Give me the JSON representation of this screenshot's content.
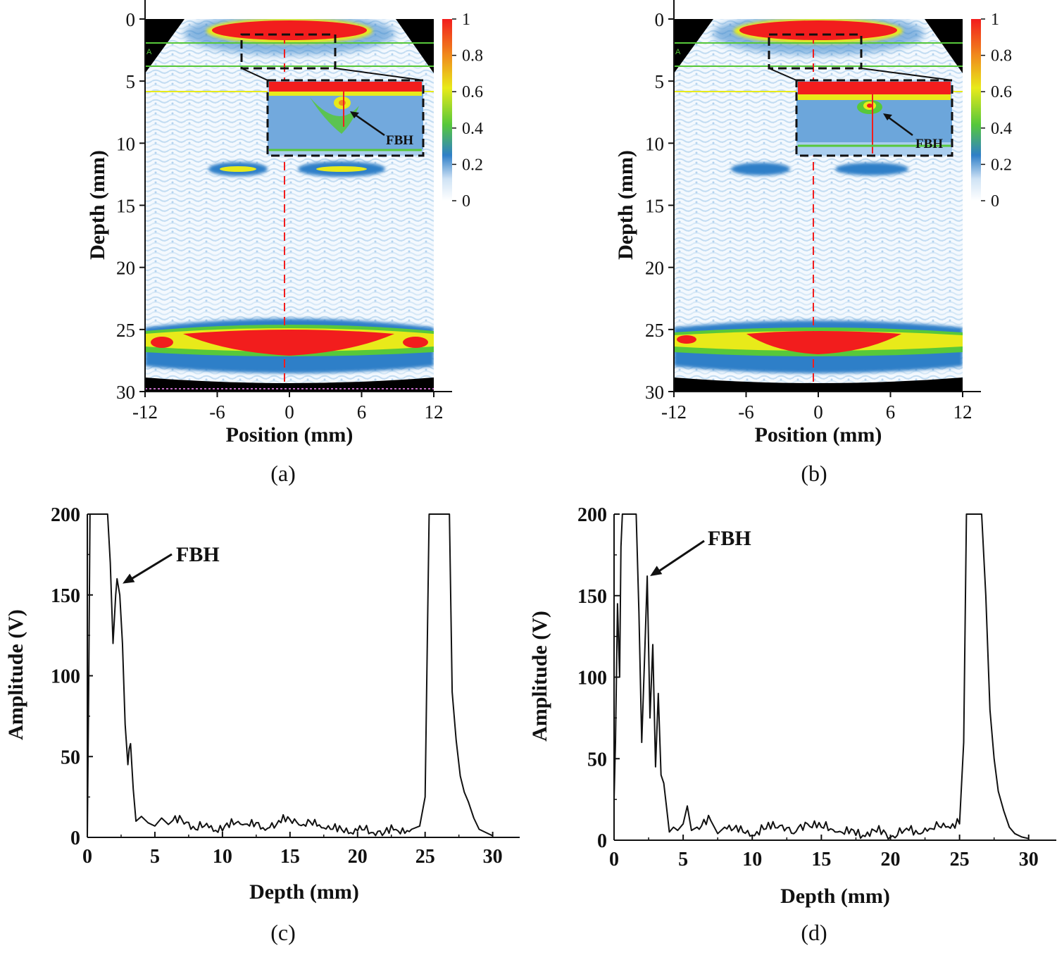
{
  "figure": {
    "colors": {
      "red": "#f21d1d",
      "yellow": "#e8ea1a",
      "green": "#57c83a",
      "blue": "#2f7fc8",
      "light_blue": "#a9cdee",
      "background": "#ffffff",
      "line": "#111111"
    }
  },
  "chart_data": [
    {
      "id": "a",
      "type": "heatmap",
      "caption": "(a)",
      "xlabel": "Position (mm)",
      "ylabel": "Depth (mm)",
      "xlim": [
        -12,
        12
      ],
      "ylim": [
        0,
        30
      ],
      "x_ticks": [
        "-12",
        "-6",
        "0",
        "6",
        "12"
      ],
      "y_ticks": [
        "0",
        "5",
        "10",
        "15",
        "20",
        "25",
        "30"
      ],
      "colorbar": {
        "range": [
          0,
          1
        ],
        "ticks": [
          "1",
          "0.8",
          "0.6",
          "0.4",
          "0.2",
          "0"
        ]
      },
      "marker_label": "A",
      "annotation": "FBH",
      "features": {
        "front_echo_depth": 0.8,
        "backwall_depth": 26.0,
        "side_echo_depth": 12.0,
        "fbh_position": 4.8,
        "fbh_depth": 2.5
      }
    },
    {
      "id": "b",
      "type": "heatmap",
      "caption": "(b)",
      "xlabel": "Position (mm)",
      "ylabel": "Depth (mm)",
      "xlim": [
        -12,
        12
      ],
      "ylim": [
        0,
        30
      ],
      "x_ticks": [
        "-12",
        "-6",
        "0",
        "6",
        "12"
      ],
      "y_ticks": [
        "0",
        "5",
        "10",
        "15",
        "20",
        "25",
        "30"
      ],
      "colorbar": {
        "range": [
          0,
          1
        ],
        "ticks": [
          "1",
          "0.8",
          "0.6",
          "0.4",
          "0.2",
          "0"
        ]
      },
      "marker_label": "A",
      "annotation": "FBH",
      "features": {
        "front_echo_depth": 0.8,
        "backwall_depth": 25.8,
        "side_echo_depth": 12.0,
        "fbh_position": 4.8,
        "fbh_depth": 2.5
      }
    },
    {
      "id": "c",
      "type": "line",
      "caption": "(c)",
      "xlabel": "Depth (mm)",
      "ylabel": "Amplitude (V)",
      "xlim": [
        0,
        32
      ],
      "ylim": [
        0,
        200
      ],
      "x_ticks": [
        "0",
        "5",
        "10",
        "15",
        "20",
        "25",
        "30"
      ],
      "y_ticks": [
        "0",
        "50",
        "100",
        "150",
        "200"
      ],
      "annotation": {
        "text": "FBH",
        "x": 2.4,
        "y": 157
      },
      "x": [
        0,
        0.1,
        0.2,
        0.3,
        1.5,
        1.7,
        1.9,
        2.1,
        2.2,
        2.4,
        2.6,
        2.8,
        3.0,
        3.1,
        3.2,
        3.4,
        3.6,
        4.0,
        4.5,
        5.0,
        5.5,
        6.0,
        7.0,
        8.0,
        9.0,
        10.0,
        11.0,
        12.0,
        13.0,
        14.0,
        15.0,
        16.0,
        17.0,
        18.0,
        19.0,
        20.0,
        21.0,
        22.0,
        23.0,
        24.0,
        24.6,
        25.0,
        25.3,
        25.5,
        26.8,
        27.0,
        27.3,
        27.6,
        27.9,
        28.2,
        28.6,
        29.0,
        29.5,
        30.0
      ],
      "y": [
        0,
        90,
        200,
        200,
        200,
        170,
        120,
        150,
        160,
        150,
        120,
        70,
        45,
        55,
        58,
        30,
        10,
        13,
        9,
        7,
        12,
        8,
        11,
        5,
        6,
        4,
        9,
        7,
        6,
        8,
        11,
        8,
        7,
        5,
        3,
        4,
        3,
        3,
        4,
        5,
        7,
        25,
        200,
        200,
        200,
        90,
        60,
        38,
        28,
        22,
        12,
        5,
        3,
        1
      ]
    },
    {
      "id": "d",
      "type": "line",
      "caption": "(d)",
      "xlabel": "Depth (mm)",
      "ylabel": "Amplitude (V)",
      "xlim": [
        0,
        32
      ],
      "ylim": [
        0,
        200
      ],
      "x_ticks": [
        "0",
        "5",
        "10",
        "15",
        "20",
        "25",
        "30"
      ],
      "y_ticks": [
        "0",
        "50",
        "100",
        "150",
        "200"
      ],
      "annotation": {
        "text": "FBH",
        "x": 2.4,
        "y": 162
      },
      "x": [
        0,
        0.1,
        0.25,
        0.4,
        0.5,
        0.6,
        1.6,
        1.8,
        2.0,
        2.2,
        2.4,
        2.6,
        2.8,
        3.0,
        3.2,
        3.4,
        3.6,
        3.8,
        4.0,
        4.3,
        4.6,
        5.0,
        5.3,
        5.6,
        6.0,
        7.0,
        7.5,
        8.0,
        9.0,
        10.0,
        11.0,
        12.0,
        13.0,
        14.0,
        15.0,
        16.0,
        17.0,
        18.0,
        19.0,
        20.0,
        21.0,
        22.0,
        23.0,
        24.0,
        25.0,
        25.3,
        25.5,
        26.6,
        26.9,
        27.2,
        27.5,
        27.8,
        28.2,
        28.6,
        29.0,
        29.5,
        30.0
      ],
      "y": [
        25,
        60,
        145,
        100,
        180,
        200,
        200,
        140,
        60,
        110,
        162,
        75,
        120,
        45,
        90,
        40,
        35,
        20,
        5,
        8,
        6,
        10,
        21,
        6,
        8,
        12,
        4,
        8,
        5,
        3,
        7,
        9,
        4,
        10,
        8,
        5,
        4,
        3,
        5,
        2,
        6,
        4,
        7,
        8,
        10,
        60,
        200,
        200,
        150,
        80,
        50,
        30,
        18,
        8,
        4,
        2,
        1
      ]
    }
  ]
}
